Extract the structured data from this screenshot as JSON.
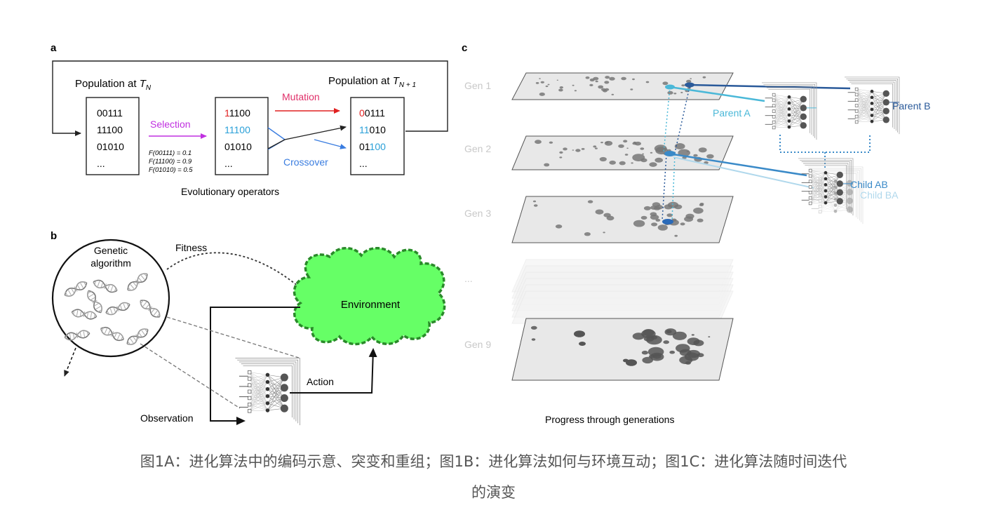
{
  "panel_a": {
    "label": "a",
    "pop_left_label": "Population at ",
    "pop_left_sym": "T",
    "pop_left_sub": "N",
    "pop_right_label": "Population at ",
    "pop_right_sym": "T",
    "pop_right_sub": "N + 1",
    "box1": [
      "00111",
      "11100",
      "01010",
      "..."
    ],
    "box2": [
      {
        "a": "1",
        "b": "1100",
        "color": "#e02020",
        "split_color": true
      },
      {
        "a": "11100",
        "b": "",
        "color": "#2aa0d8"
      },
      {
        "a": "01010",
        "b": ""
      },
      {
        "a": "...",
        "b": ""
      }
    ],
    "box3": [
      {
        "a": "0",
        "b": "0111",
        "color": "#e02020",
        "part": "first"
      },
      {
        "a": "11",
        "b": "010",
        "color": "#2aa0d8",
        "part": "first"
      },
      {
        "a": "01",
        "b": "100",
        "color": "#2aa0d8",
        "part": "second"
      },
      {
        "a": "...",
        "b": ""
      }
    ],
    "selection": "Selection",
    "mutation": "Mutation",
    "crossover": "Crossover",
    "fitness_lines": [
      "F(00111) = 0.1",
      "F(11100) = 0.9",
      "F(01010) = 0.5"
    ],
    "caption": "Evolutionary operators",
    "colors": {
      "selection": "#c030e0",
      "mutation": "#e0306a",
      "crossover": "#3a7de0"
    }
  },
  "panel_b": {
    "label": "b",
    "genetic": [
      "Genetic",
      "algorithm"
    ],
    "fitness": "Fitness",
    "environment": "Environment",
    "action": "Action",
    "observation": "Observation",
    "colors": {
      "environment_fill": "#66ff66",
      "environment_border": "#2a8a2a"
    }
  },
  "panel_c": {
    "label": "c",
    "generations": [
      "Gen 1",
      "Gen 2",
      "Gen 3",
      "...",
      "Gen 9"
    ],
    "parent_a": "Parent A",
    "parent_b": "Parent B",
    "child_ab": "Child AB",
    "child_ba": "Child BA",
    "caption": "Progress through generations",
    "colors": {
      "parent_a": "#4ab8d8",
      "parent_b": "#2a5a9a",
      "child_ab": "#3a8ac8",
      "child_ba": "#b0d8ec"
    }
  },
  "caption": {
    "line1": "图1A：进化算法中的编码示意、突变和重组；图1B：进化算法如何与环境互动；图1C：进化算法随时间迭代",
    "line2": "的演变"
  }
}
